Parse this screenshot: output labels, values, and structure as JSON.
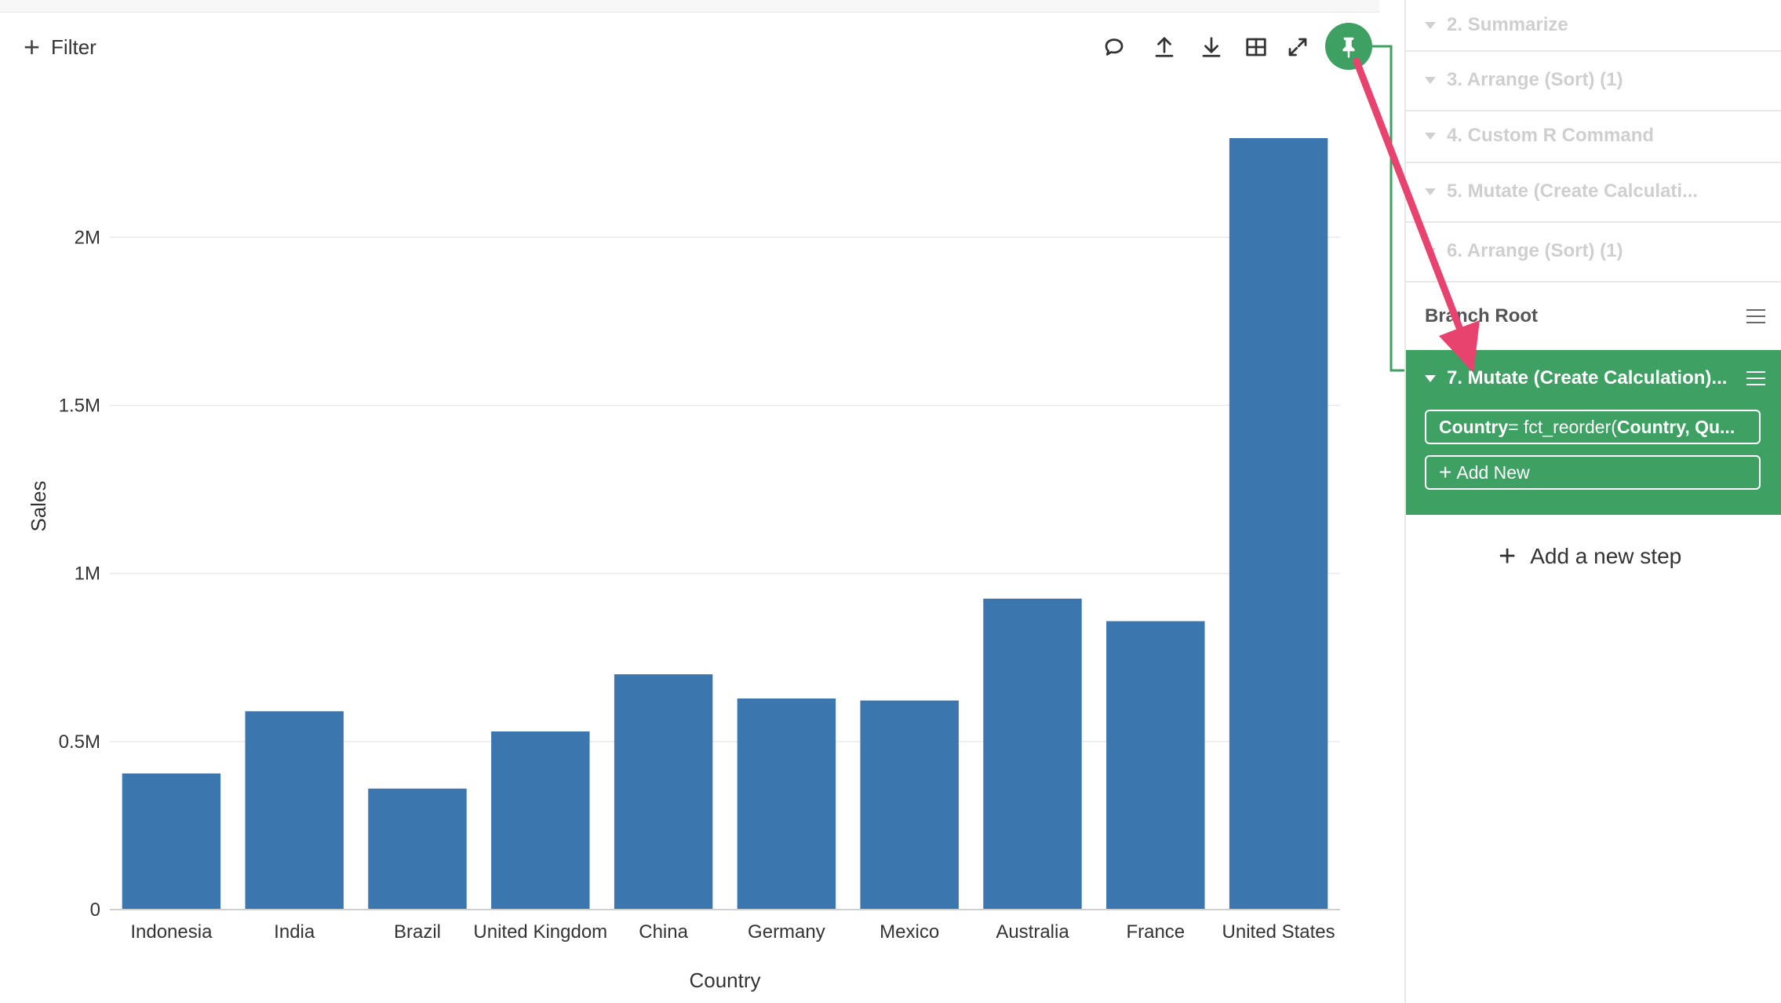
{
  "toolbar": {
    "filter_label": "Filter",
    "icons": [
      "comment-icon",
      "upload-icon",
      "download-icon",
      "table-icon",
      "expand-icon",
      "pin-icon"
    ]
  },
  "chart_data": {
    "type": "bar",
    "categories": [
      "Indonesia",
      "India",
      "Brazil",
      "United Kingdom",
      "China",
      "Germany",
      "Mexico",
      "Australia",
      "France",
      "United States"
    ],
    "values": [
      405000,
      590000,
      360000,
      530000,
      700000,
      628000,
      622000,
      925000,
      858000,
      2295000
    ],
    "xlabel": "Country",
    "ylabel": "Sales",
    "ylim": [
      0,
      2400000
    ],
    "yticks": [
      {
        "value": 0,
        "label": "0"
      },
      {
        "value": 500000,
        "label": "0.5M"
      },
      {
        "value": 1000000,
        "label": "1M"
      },
      {
        "value": 1500000,
        "label": "1.5M"
      },
      {
        "value": 2000000,
        "label": "2M"
      }
    ],
    "bar_color": "#3b76ae",
    "grid": true
  },
  "steps_panel": {
    "steps": [
      {
        "label": "2. Summarize"
      },
      {
        "label": "3. Arrange (Sort) (1)"
      },
      {
        "label": "4. Custom R Command"
      },
      {
        "label": "5. Mutate (Create Calculati..."
      },
      {
        "label": "6. Arrange (Sort) (1)"
      }
    ],
    "branch_root_label": "Branch Root",
    "active_step": {
      "label": "7. Mutate (Create Calculation)...",
      "calc_column": "Country",
      "calc_eq": " = fct_reorder(",
      "calc_arg": "Country, Qu...",
      "add_new_label": "Add New"
    },
    "add_step_label": "Add a new step"
  },
  "colors": {
    "accent_green": "#3ea163",
    "annotation_arrow": "#e8426e"
  }
}
